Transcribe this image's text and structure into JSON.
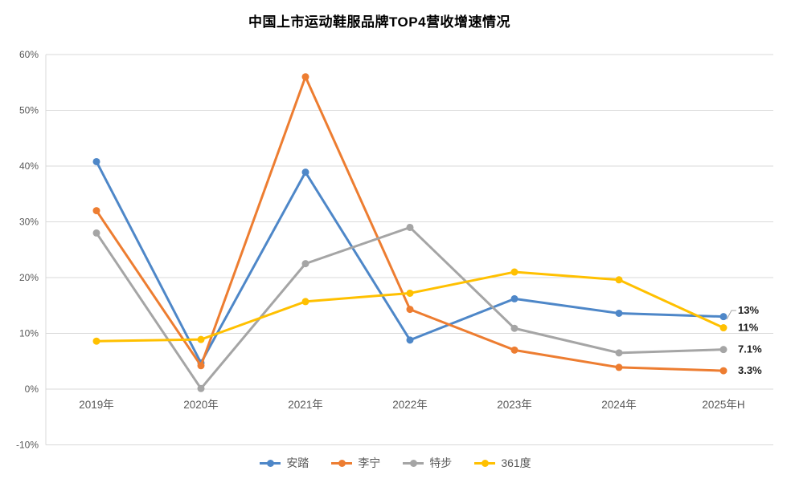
{
  "chart_data": {
    "type": "line",
    "title": "中国上市运动鞋服品牌TOP4营收增速情况",
    "categories": [
      "2019年",
      "2020年",
      "2021年",
      "2022年",
      "2023年",
      "2024年",
      "2025年H"
    ],
    "yticks": [
      60,
      50,
      40,
      30,
      20,
      10,
      0,
      -10
    ],
    "ytick_labels": [
      "60%",
      "50%",
      "40%",
      "30%",
      "20%",
      "10%",
      "0%",
      "-10%"
    ],
    "ylim": [
      -10,
      60
    ],
    "grid": true,
    "legend_position": "bottom",
    "colors": {
      "grid": "#D9D9D9",
      "axis_text": "#595959",
      "end_label_text": "#1a1a1a",
      "leader_line": "#A6A6A6"
    },
    "series": [
      {
        "key": "anta",
        "name": "安踏",
        "color": "#4E87C8",
        "values": [
          40.8,
          4.7,
          38.9,
          8.8,
          16.2,
          13.6,
          13.0
        ],
        "end_label": "13%"
      },
      {
        "key": "lining",
        "name": "李宁",
        "color": "#ED7D31",
        "values": [
          32.0,
          4.2,
          56.0,
          14.3,
          7.0,
          3.9,
          3.3
        ],
        "end_label": "3.3%"
      },
      {
        "key": "xtep",
        "name": "特步",
        "color": "#A5A5A5",
        "values": [
          28.0,
          0.1,
          22.5,
          29.0,
          10.9,
          6.5,
          7.1
        ],
        "end_label": "7.1%"
      },
      {
        "key": "361du",
        "name": "361度",
        "color": "#FFC000",
        "values": [
          8.6,
          8.9,
          15.7,
          17.2,
          21.0,
          19.6,
          11.0
        ],
        "end_label": "11%"
      }
    ]
  }
}
